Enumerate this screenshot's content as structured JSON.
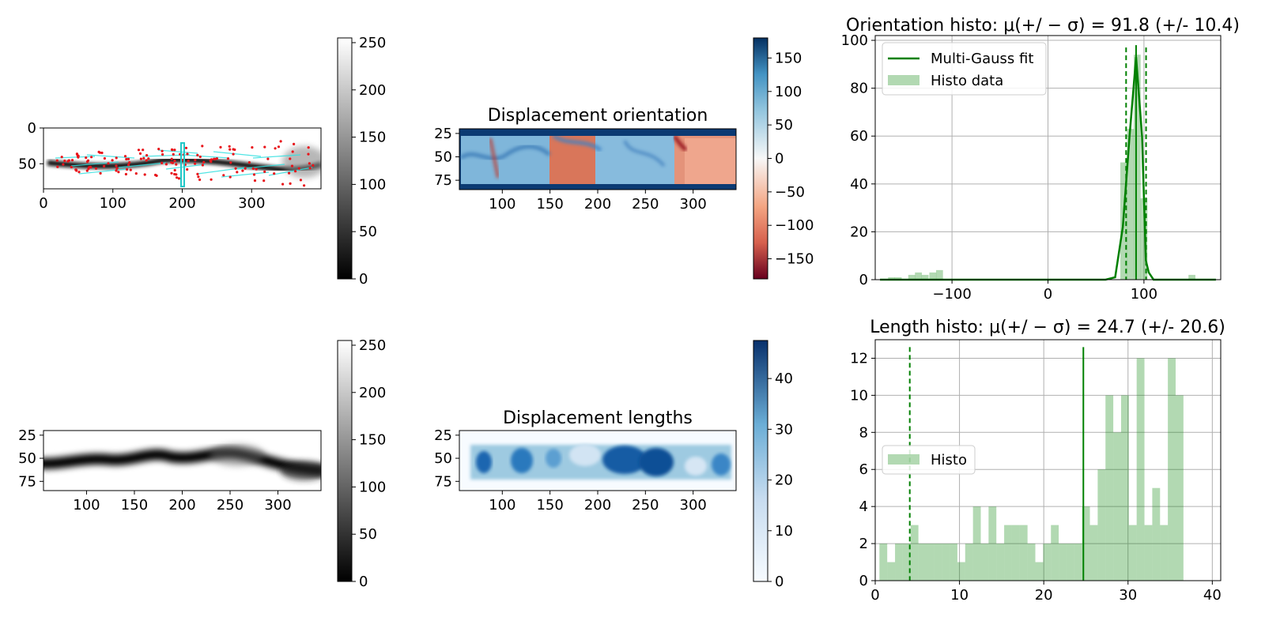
{
  "chart_data": [
    {
      "type": "image",
      "panel": "top-left",
      "title": "",
      "xticks": [
        0,
        100,
        200,
        300
      ],
      "yticks": [
        0,
        50
      ],
      "xlim": [
        0,
        400
      ],
      "ylim": [
        85,
        0
      ],
      "overlay": "displacement vectors (cyan) with red point markers",
      "colorbar": {
        "cmap": "gray",
        "ticks": [
          0,
          50,
          100,
          150,
          200,
          250
        ],
        "range": [
          0,
          255
        ]
      }
    },
    {
      "type": "heatmap",
      "panel": "top-middle",
      "title": "Displacement orientation",
      "xticks": [
        100,
        150,
        200,
        250,
        300
      ],
      "yticks": [
        25,
        50,
        75
      ],
      "xlim": [
        55,
        345
      ],
      "ylim": [
        85,
        20
      ],
      "colorbar": {
        "cmap": "RdBu",
        "ticks": [
          150,
          100,
          50,
          0,
          -50,
          -100,
          -150
        ],
        "range": [
          -180,
          180
        ]
      }
    },
    {
      "type": "bar",
      "panel": "top-right",
      "title": "Orientation histo: μ(+/ − σ) = 91.8 (+/- 10.4)",
      "xticks": [
        -100,
        0,
        100
      ],
      "yticks": [
        0,
        20,
        40,
        60,
        80,
        100
      ],
      "xlim": [
        -180,
        180
      ],
      "ylim": [
        0,
        102
      ],
      "grid": true,
      "legend": {
        "position": "top-left",
        "entries": [
          "Multi-Gauss fit",
          "Histo data"
        ]
      },
      "bar_width": 7.2,
      "bars": [
        {
          "x": -163,
          "y": 1
        },
        {
          "x": -156,
          "y": 1
        },
        {
          "x": -142,
          "y": 2
        },
        {
          "x": -135,
          "y": 3
        },
        {
          "x": -128,
          "y": 2
        },
        {
          "x": -120,
          "y": 3
        },
        {
          "x": -113,
          "y": 4
        },
        {
          "x": 79,
          "y": 49
        },
        {
          "x": 86,
          "y": 63
        },
        {
          "x": 93,
          "y": 94
        },
        {
          "x": 100,
          "y": 34
        },
        {
          "x": 150,
          "y": 2
        }
      ],
      "fit_line": {
        "name": "Multi-Gauss fit",
        "x": [
          -175,
          60,
          70,
          78,
          85,
          91.8,
          98,
          102,
          105,
          110,
          175
        ],
        "y": [
          0,
          0,
          1,
          22,
          60,
          93,
          60,
          8,
          3,
          0,
          0
        ]
      },
      "mean": 91.8,
      "sigma": 10.4
    },
    {
      "type": "image",
      "panel": "bottom-left",
      "title": "",
      "xticks": [
        100,
        150,
        200,
        250,
        300
      ],
      "yticks": [
        25,
        50,
        75
      ],
      "xlim": [
        55,
        345
      ],
      "ylim": [
        85,
        20
      ],
      "colorbar": {
        "cmap": "gray",
        "ticks": [
          0,
          50,
          100,
          150,
          200,
          250
        ],
        "range": [
          0,
          255
        ]
      }
    },
    {
      "type": "heatmap",
      "panel": "bottom-middle",
      "title": "Displacement lengths",
      "xticks": [
        100,
        150,
        200,
        250,
        300
      ],
      "yticks": [
        25,
        50,
        75
      ],
      "xlim": [
        55,
        345
      ],
      "ylim": [
        85,
        20
      ],
      "colorbar": {
        "cmap": "Blues",
        "ticks": [
          40,
          30,
          20,
          10,
          0
        ],
        "range": [
          0,
          47.5
        ]
      }
    },
    {
      "type": "bar",
      "panel": "bottom-right",
      "title": "Length histo: μ(+/ − σ) = 24.7 (+/- 20.6)",
      "xticks": [
        0,
        10,
        20,
        30,
        40
      ],
      "yticks": [
        0,
        2,
        4,
        6,
        8,
        10,
        12
      ],
      "xlim": [
        0,
        41
      ],
      "ylim": [
        0,
        13
      ],
      "grid": true,
      "legend": {
        "position": "center-left",
        "entries": [
          "Histo"
        ]
      },
      "bin_start": 0.5,
      "bin_width": 0.925,
      "values": [
        2,
        1,
        2,
        2,
        3,
        2,
        2,
        2,
        2,
        2,
        1,
        2,
        4,
        2,
        4,
        2,
        3,
        3,
        3,
        2,
        1,
        2,
        3,
        2,
        2,
        2,
        4,
        3,
        6,
        10,
        8,
        10,
        3,
        12,
        3,
        5,
        3,
        12,
        10
      ],
      "vlines": [
        {
          "x": 24.7,
          "style": "solid"
        },
        {
          "x": 4.1,
          "style": "dashed"
        }
      ],
      "mean": 24.7,
      "sigma": 20.6
    }
  ]
}
